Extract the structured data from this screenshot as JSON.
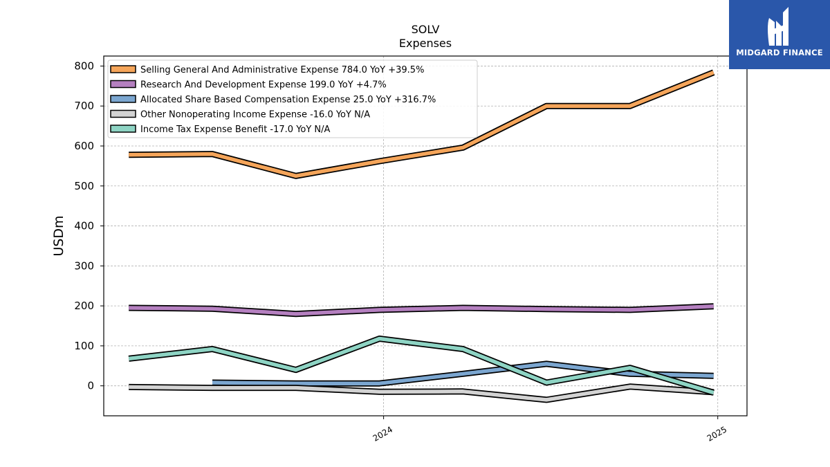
{
  "chart_data": {
    "type": "line",
    "title": "SOLV",
    "subtitle": "Expenses",
    "ylabel": "USDm",
    "xlabel": "",
    "ylim": [
      -75,
      825
    ],
    "y_ticks": [
      0,
      100,
      200,
      300,
      400,
      500,
      600,
      700,
      800
    ],
    "x_ticks": [
      "2024",
      "2025"
    ],
    "x_tick_positions": [
      3.05,
      7.05
    ],
    "xlim": [
      -0.3,
      7.4
    ],
    "grid": true,
    "legend_position": "top-left",
    "series": [
      {
        "name": "Selling General And Administrative Expense",
        "legend": "Selling General And Administrative Expense  784.0 YoY +39.5%",
        "color": "#f5a55a",
        "start": 0,
        "values": [
          578,
          580,
          525,
          562,
          596,
          700,
          700,
          784
        ]
      },
      {
        "name": "Research And Development Expense",
        "legend": "Research And Development Expense  199.0 YoY +4.7%",
        "color": "#b580c0",
        "start": 0,
        "values": [
          195,
          193,
          180,
          190,
          195,
          192,
          190,
          199
        ]
      },
      {
        "name": "Allocated Share Based Compensation Expense",
        "legend": "Allocated Share Based Compensation Expense  25.0 YoY +316.7%",
        "color": "#7ba6d0",
        "start": 1,
        "values": [
          8,
          6,
          6,
          30,
          55,
          30,
          25
        ]
      },
      {
        "name": "Other Nonoperating Income Expense",
        "legend": "Other Nonoperating Income Expense  -16.0 YoY N/A",
        "color": "#d3d3d3",
        "start": 0,
        "values": [
          -3,
          -5,
          -5,
          -15,
          -14,
          -35,
          -2,
          -16
        ]
      },
      {
        "name": "Income Tax Expense Benefit",
        "legend": "Income Tax Expense Benefit  -17.0 YoY N/A",
        "color": "#8ed4c4",
        "start": 0,
        "values": [
          68,
          92,
          40,
          118,
          92,
          8,
          45,
          -17
        ]
      }
    ]
  },
  "logo": {
    "text": "MIDGARD FINANCE",
    "background": "#2a57aa"
  }
}
